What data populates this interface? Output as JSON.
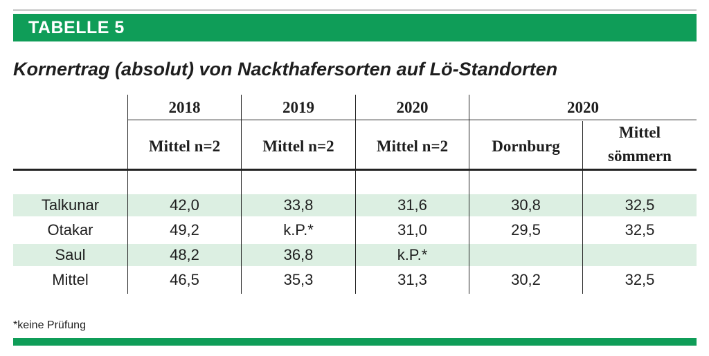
{
  "banner": {
    "title": "TABELLE 5"
  },
  "subtitle": "Kornertrag (absolut) von Nackthafersorten auf Lö-Standorten",
  "table": {
    "year_headers": [
      "2018",
      "2019",
      "2020",
      "2020"
    ],
    "sub_headers": [
      "Mittel n=2",
      "Mittel n=2",
      "Mittel n=2",
      "Dornburg",
      "Mittel\nsömmern"
    ],
    "sub_header_last_line1": "Mittel",
    "sub_header_last_line2": "sömmern",
    "rows": [
      {
        "label": "Talkunar",
        "values": [
          "42,0",
          "33,8",
          "31,6",
          "30,8",
          "32,5"
        ],
        "shaded": true
      },
      {
        "label": "Otakar",
        "values": [
          "49,2",
          "k.P.*",
          "31,0",
          "29,5",
          "32,5"
        ],
        "shaded": false
      },
      {
        "label": "Saul",
        "values": [
          "48,2",
          "36,8",
          "k.P.*",
          "",
          ""
        ],
        "shaded": true
      },
      {
        "label": "Mittel",
        "values": [
          "46,5",
          "35,3",
          "31,3",
          "30,2",
          "32,5"
        ],
        "shaded": false
      }
    ]
  },
  "footnote": "*keine Prüfung",
  "colors": {
    "brand_green": "#0f9d58",
    "row_shade": "#dcefe2"
  }
}
